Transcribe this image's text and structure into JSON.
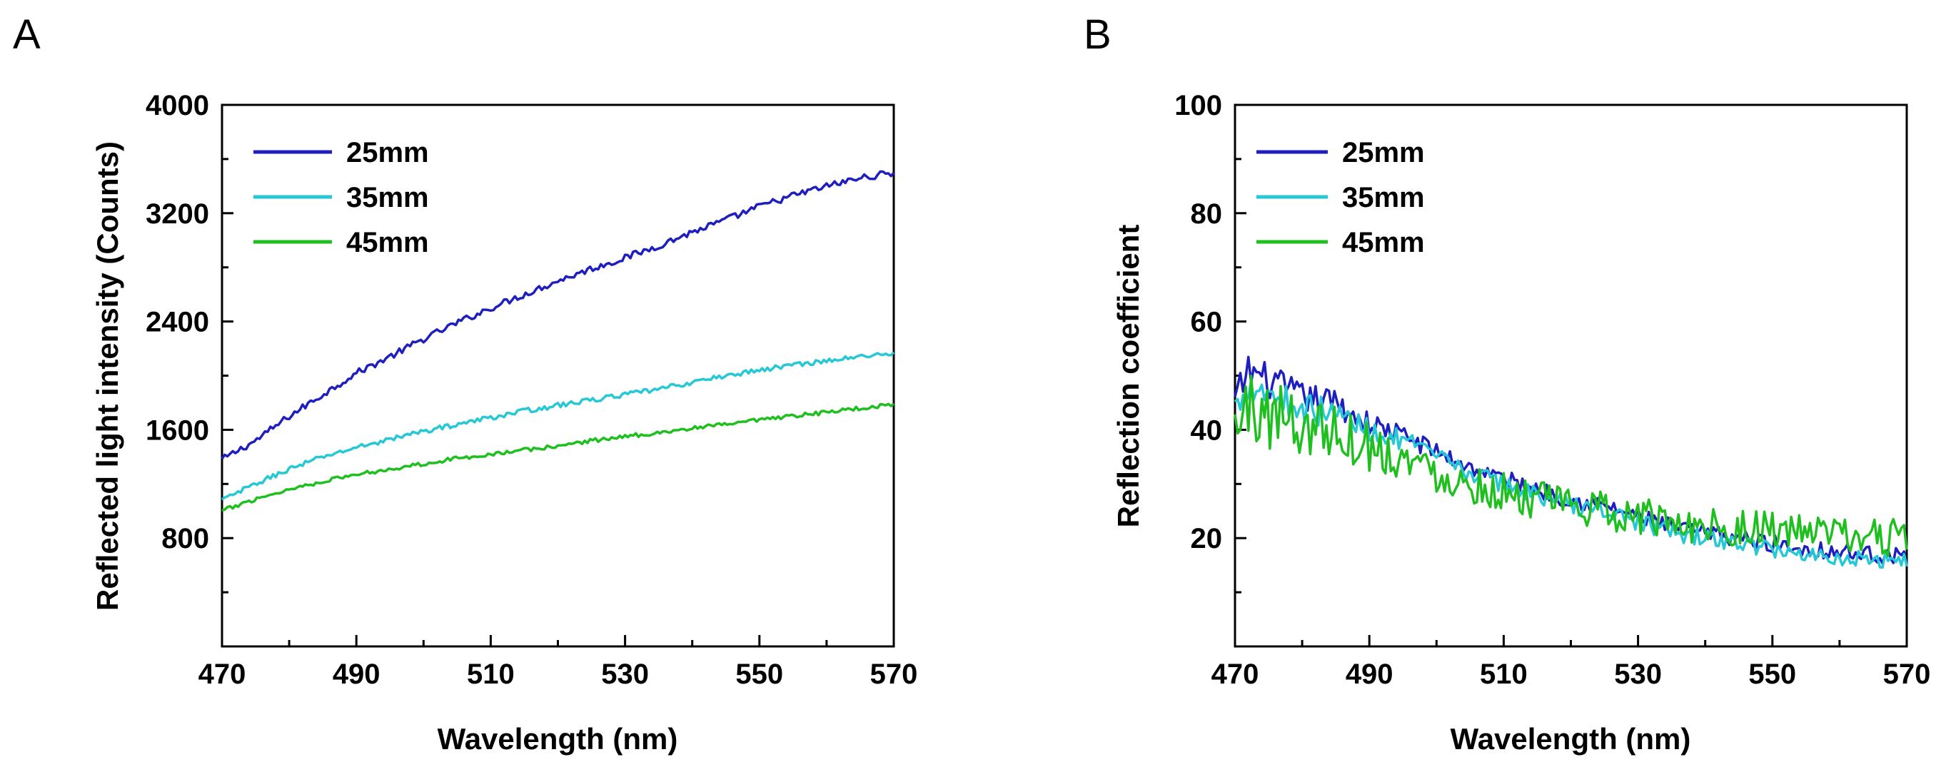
{
  "chart_data": [
    {
      "panel_label": "A",
      "type": "line",
      "title": "",
      "xlabel": "Wavelength (nm)",
      "ylabel": "Reflected light intensity (Counts)",
      "xlim": [
        470,
        570
      ],
      "ylim": [
        0,
        4000
      ],
      "xticks": [
        470,
        490,
        510,
        530,
        550,
        570
      ],
      "yticks": [
        800,
        1600,
        2400,
        3200,
        4000
      ],
      "x_minor_step": 10,
      "y_minor_step": 400,
      "grid": false,
      "legend": "top-left",
      "series": [
        {
          "name": "25mm",
          "color": "#1f1fbf",
          "x": [
            470,
            475,
            480,
            485,
            490,
            495,
            500,
            505,
            510,
            515,
            520,
            525,
            530,
            535,
            540,
            545,
            550,
            555,
            560,
            565,
            570
          ],
          "y": [
            1380,
            1520,
            1700,
            1860,
            2020,
            2140,
            2270,
            2390,
            2500,
            2600,
            2700,
            2790,
            2870,
            2960,
            3060,
            3150,
            3250,
            3330,
            3400,
            3460,
            3500
          ],
          "noise": 25
        },
        {
          "name": "35mm",
          "color": "#27c8d6",
          "x": [
            470,
            475,
            480,
            485,
            490,
            495,
            500,
            505,
            510,
            515,
            520,
            525,
            530,
            535,
            540,
            545,
            550,
            555,
            560,
            565,
            570
          ],
          "y": [
            1080,
            1200,
            1310,
            1400,
            1470,
            1530,
            1590,
            1640,
            1690,
            1740,
            1780,
            1820,
            1860,
            1900,
            1950,
            2000,
            2040,
            2080,
            2110,
            2140,
            2170
          ],
          "noise": 18
        },
        {
          "name": "45mm",
          "color": "#1fbf1f",
          "x": [
            470,
            475,
            480,
            485,
            490,
            495,
            500,
            505,
            510,
            515,
            520,
            525,
            530,
            535,
            540,
            545,
            550,
            555,
            560,
            565,
            570
          ],
          "y": [
            1000,
            1090,
            1160,
            1220,
            1270,
            1310,
            1350,
            1390,
            1420,
            1450,
            1480,
            1520,
            1550,
            1580,
            1610,
            1640,
            1670,
            1700,
            1730,
            1760,
            1790
          ],
          "noise": 15
        }
      ]
    },
    {
      "panel_label": "B",
      "type": "line",
      "title": "",
      "xlabel": "Wavelength (nm)",
      "ylabel": "Reflection coefficient",
      "xlim": [
        470,
        570
      ],
      "ylim": [
        0,
        100
      ],
      "xticks": [
        470,
        490,
        510,
        530,
        550,
        570
      ],
      "yticks": [
        20,
        40,
        60,
        80,
        100
      ],
      "x_minor_step": 10,
      "y_minor_step": 10,
      "grid": false,
      "legend": "top-left",
      "series": [
        {
          "name": "25mm",
          "color": "#1f1fbf",
          "x": [
            470,
            472,
            475,
            480,
            485,
            490,
            495,
            500,
            505,
            510,
            515,
            520,
            525,
            530,
            535,
            540,
            545,
            550,
            555,
            560,
            565,
            570
          ],
          "y": [
            45,
            51,
            49,
            46,
            45,
            41,
            39,
            36,
            33,
            31,
            29,
            27,
            26,
            24,
            22,
            21,
            20,
            19,
            18,
            17.5,
            17,
            16.5
          ],
          "noise": 1.6
        },
        {
          "name": "35mm",
          "color": "#27c8d6",
          "x": [
            470,
            472,
            475,
            480,
            485,
            490,
            495,
            500,
            505,
            510,
            515,
            520,
            525,
            530,
            535,
            540,
            545,
            550,
            555,
            560,
            565,
            570
          ],
          "y": [
            44,
            49,
            47,
            44,
            43,
            40,
            38,
            35,
            32,
            30,
            28,
            26,
            25,
            23,
            21,
            20,
            19,
            18,
            17,
            16.5,
            16,
            16
          ],
          "noise": 1.6
        },
        {
          "name": "45mm",
          "color": "#1fbf1f",
          "x": [
            470,
            472,
            475,
            480,
            485,
            490,
            495,
            500,
            505,
            510,
            515,
            520,
            525,
            530,
            535,
            540,
            545,
            550,
            555,
            560,
            565,
            570
          ],
          "y": [
            40,
            44,
            43,
            41,
            40,
            37,
            35,
            32,
            30,
            28.5,
            27,
            26,
            25,
            24,
            23,
            22.5,
            22,
            21.5,
            21,
            20.5,
            20,
            20
          ],
          "noise": 3.5
        }
      ]
    }
  ]
}
